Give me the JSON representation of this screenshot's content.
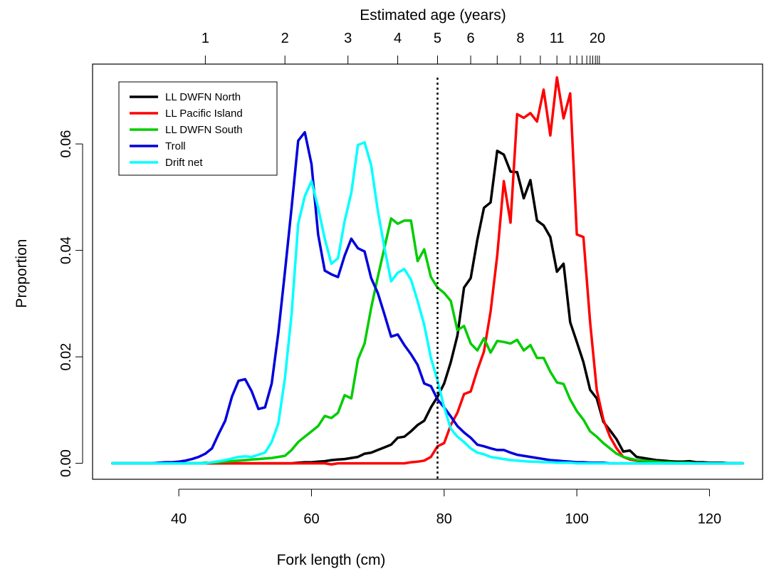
{
  "chart_data": {
    "type": "line",
    "xlabel": "Fork length (cm)",
    "ylabel": "Proportion",
    "top_axis_label": "Estimated age (years)",
    "xlim": [
      27,
      128
    ],
    "ylim": [
      -0.003,
      0.075
    ],
    "x_ticks": [
      40,
      60,
      80,
      100,
      120
    ],
    "x_tick_labels": [
      "40",
      "60",
      "80",
      "100",
      "120"
    ],
    "y_ticks": [
      0.0,
      0.02,
      0.04,
      0.06
    ],
    "y_tick_labels": [
      "0.00",
      "0.02",
      "0.04",
      "0.06"
    ],
    "top_ticks": [
      {
        "x": 44.0,
        "label": "1"
      },
      {
        "x": 56.0,
        "label": "2"
      },
      {
        "x": 65.5,
        "label": "3"
      },
      {
        "x": 73.0,
        "label": "4"
      },
      {
        "x": 79.0,
        "label": "5"
      },
      {
        "x": 84.0,
        "label": "6"
      },
      {
        "x": 88.0,
        "label": ""
      },
      {
        "x": 91.5,
        "label": "8"
      },
      {
        "x": 94.5,
        "label": ""
      },
      {
        "x": 97.0,
        "label": "11"
      },
      {
        "x": 99.0,
        "label": ""
      },
      {
        "x": 100.0,
        "label": ""
      },
      {
        "x": 100.8,
        "label": ""
      },
      {
        "x": 101.5,
        "label": ""
      },
      {
        "x": 102.0,
        "label": ""
      },
      {
        "x": 102.4,
        "label": ""
      },
      {
        "x": 102.8,
        "label": ""
      },
      {
        "x": 103.1,
        "label": "20"
      },
      {
        "x": 103.4,
        "label": ""
      }
    ],
    "vline": {
      "x": 79,
      "style": "dotted"
    },
    "legend_position": "top-left",
    "grid": false,
    "x": [
      30,
      31,
      32,
      33,
      34,
      35,
      36,
      37,
      38,
      39,
      40,
      41,
      42,
      43,
      44,
      45,
      46,
      47,
      48,
      49,
      50,
      51,
      52,
      53,
      54,
      55,
      56,
      57,
      58,
      59,
      60,
      61,
      62,
      63,
      64,
      65,
      66,
      67,
      68,
      69,
      70,
      71,
      72,
      73,
      74,
      75,
      76,
      77,
      78,
      79,
      80,
      81,
      82,
      83,
      84,
      85,
      86,
      87,
      88,
      89,
      90,
      91,
      92,
      93,
      94,
      95,
      96,
      97,
      98,
      99,
      100,
      101,
      102,
      103,
      104,
      105,
      106,
      107,
      108,
      109,
      110,
      111,
      112,
      113,
      114,
      115,
      116,
      117,
      118,
      119,
      120,
      121,
      122,
      123,
      124,
      125
    ],
    "series": [
      {
        "name": "LL DWFN North",
        "color": "#000000",
        "values": [
          0,
          0,
          0,
          0,
          0,
          0,
          0,
          0,
          0,
          0,
          0,
          0,
          0,
          0,
          0,
          0,
          0,
          0,
          0,
          0,
          0,
          0,
          0,
          0,
          0,
          0,
          0,
          0,
          0.0001,
          0.0002,
          0.0002,
          0.0003,
          0.0004,
          0.0006,
          0.0007,
          0.0008,
          0.001,
          0.0012,
          0.0018,
          0.002,
          0.0025,
          0.003,
          0.0035,
          0.0048,
          0.005,
          0.006,
          0.0072,
          0.008,
          0.0105,
          0.0125,
          0.015,
          0.019,
          0.024,
          0.033,
          0.0348,
          0.042,
          0.048,
          0.049,
          0.0587,
          0.058,
          0.0548,
          0.0547,
          0.0498,
          0.0532,
          0.0456,
          0.0447,
          0.0425,
          0.036,
          0.0375,
          0.0265,
          0.0228,
          0.019,
          0.0138,
          0.0122,
          0.0078,
          0.0062,
          0.0045,
          0.0022,
          0.0024,
          0.0012,
          0.001,
          0.0008,
          0.0006,
          0.0005,
          0.0004,
          0.0003,
          0.0003,
          0.0004,
          0.0002,
          0.0002,
          0.0001,
          0.0001,
          0.0001,
          0,
          0,
          0
        ]
      },
      {
        "name": "LL Pacific Island",
        "color": "#ff0000",
        "values": [
          0,
          0,
          0,
          0,
          0,
          0,
          0,
          0,
          0,
          0,
          0,
          0,
          0,
          0,
          0,
          0,
          0,
          0,
          0,
          0,
          0,
          0,
          0,
          0,
          0,
          0,
          0,
          0,
          0,
          0,
          0,
          0,
          0,
          -0.0002,
          0,
          0,
          0,
          0,
          0,
          0,
          0,
          0,
          0,
          0,
          0,
          0.0002,
          0.0003,
          0.0005,
          0.0012,
          0.0032,
          0.0038,
          0.0072,
          0.0095,
          0.013,
          0.0135,
          0.0175,
          0.021,
          0.0285,
          0.039,
          0.053,
          0.0452,
          0.0656,
          0.0649,
          0.0658,
          0.0642,
          0.0702,
          0.0616,
          0.0725,
          0.0648,
          0.0695,
          0.043,
          0.0425,
          0.0265,
          0.0138,
          0.0082,
          0.005,
          0.0028,
          0.0012,
          0.0007,
          0.0005,
          0.0003,
          0.0002,
          0.0001,
          0,
          0,
          0,
          0,
          0,
          0,
          0,
          0,
          0,
          0,
          0,
          0,
          0
        ]
      },
      {
        "name": "LL DWFN South",
        "color": "#00cc00",
        "values": [
          0,
          0,
          0,
          0,
          0,
          0,
          0,
          0,
          0,
          0,
          0,
          0,
          0,
          0,
          0.0001,
          0.0001,
          0.0002,
          0.0003,
          0.0004,
          0.0005,
          0.0006,
          0.0007,
          0.0008,
          0.0009,
          0.001,
          0.0012,
          0.0014,
          0.0025,
          0.004,
          0.005,
          0.006,
          0.007,
          0.0089,
          0.0085,
          0.0095,
          0.0128,
          0.0122,
          0.0195,
          0.0225,
          0.0292,
          0.035,
          0.0405,
          0.046,
          0.045,
          0.0456,
          0.0456,
          0.038,
          0.0402,
          0.035,
          0.033,
          0.032,
          0.0305,
          0.025,
          0.0258,
          0.0225,
          0.0212,
          0.0235,
          0.0208,
          0.023,
          0.0228,
          0.0225,
          0.0232,
          0.0212,
          0.0222,
          0.0198,
          0.0198,
          0.0172,
          0.0152,
          0.0149,
          0.012,
          0.0098,
          0.0082,
          0.006,
          0.005,
          0.0038,
          0.0028,
          0.0018,
          0.0012,
          0.0009,
          0.0006,
          0.0005,
          0.0004,
          0.0003,
          0.0002,
          0.0002,
          0.0001,
          0.0001,
          0.0001,
          0,
          0,
          0,
          0,
          0,
          0,
          0,
          0
        ]
      },
      {
        "name": "Troll",
        "color": "#0000dd",
        "values": [
          0,
          0,
          0,
          0,
          0,
          0,
          0,
          0.0001,
          0.0002,
          0.0002,
          0.0003,
          0.0005,
          0.0008,
          0.0012,
          0.0018,
          0.0028,
          0.0055,
          0.008,
          0.0125,
          0.0155,
          0.0158,
          0.0135,
          0.0102,
          0.0105,
          0.015,
          0.0245,
          0.036,
          0.048,
          0.0606,
          0.0622,
          0.0562,
          0.043,
          0.0362,
          0.0355,
          0.035,
          0.039,
          0.0422,
          0.0404,
          0.0398,
          0.0348,
          0.032,
          0.028,
          0.0238,
          0.0242,
          0.0222,
          0.0205,
          0.0185,
          0.015,
          0.0145,
          0.012,
          0.0105,
          0.0088,
          0.007,
          0.0058,
          0.0048,
          0.0035,
          0.0032,
          0.0028,
          0.0025,
          0.0025,
          0.002,
          0.0016,
          0.0014,
          0.0012,
          0.001,
          0.0008,
          0.0006,
          0.0005,
          0.0004,
          0.0003,
          0.0002,
          0.0002,
          0.0001,
          0.0001,
          0.0001,
          0,
          0,
          0,
          0,
          0,
          0,
          0,
          0,
          0,
          0,
          0,
          0,
          0,
          0,
          0,
          0,
          0,
          0,
          0,
          0,
          0
        ]
      },
      {
        "name": "Drift net",
        "color": "#00ffff",
        "values": [
          0,
          0,
          0,
          0,
          0,
          0,
          0,
          0,
          0,
          0,
          0,
          0,
          0,
          0,
          0,
          0.0002,
          0.0004,
          0.0006,
          0.0009,
          0.0012,
          0.0013,
          0.0012,
          0.0016,
          0.002,
          0.004,
          0.0075,
          0.016,
          0.028,
          0.045,
          0.0502,
          0.053,
          0.048,
          0.0422,
          0.0375,
          0.0385,
          0.0455,
          0.0508,
          0.0598,
          0.0603,
          0.056,
          0.0475,
          0.0405,
          0.0342,
          0.0358,
          0.0365,
          0.0345,
          0.0305,
          0.026,
          0.0198,
          0.0155,
          0.0105,
          0.0065,
          0.005,
          0.004,
          0.0028,
          0.002,
          0.0017,
          0.0012,
          0.001,
          0.0008,
          0.0006,
          0.0005,
          0.0004,
          0.0003,
          0.0003,
          0.0002,
          0.0002,
          0.0001,
          0.0001,
          0.0001,
          0,
          0,
          0,
          0,
          0,
          0,
          0,
          0,
          0,
          0,
          0,
          0,
          0,
          0,
          0,
          0,
          0,
          0,
          0,
          0,
          0,
          0,
          0,
          0,
          0,
          0
        ]
      }
    ]
  }
}
